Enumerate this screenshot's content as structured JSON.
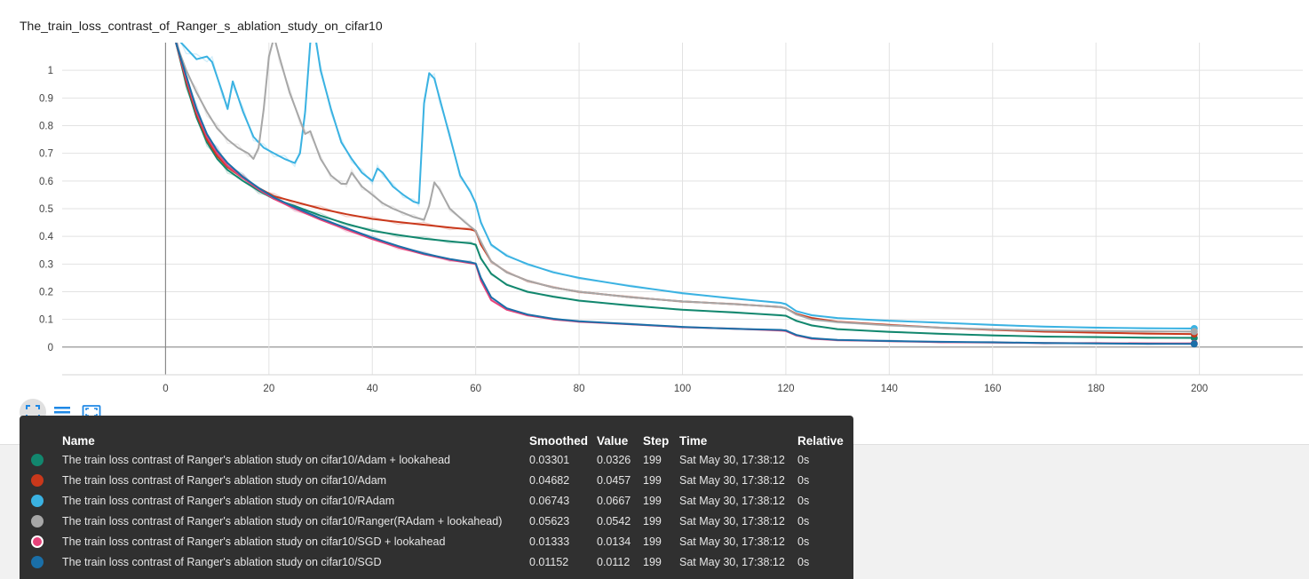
{
  "chart_title": "The_train_loss_contrast_of_Ranger_s_ablation_study_on_cifar10",
  "chart_data": {
    "type": "line",
    "title": "The_train_loss_contrast_of_Ranger_s_ablation_study_on_cifar10",
    "xlim": [
      -20,
      220
    ],
    "ylim": [
      -0.1,
      1.1
    ],
    "x_ticks": [
      "0",
      "20",
      "40",
      "60",
      "80",
      "100",
      "120",
      "140",
      "160",
      "180",
      "200"
    ],
    "y_ticks": [
      "0",
      "0.1",
      "0.2",
      "0.3",
      "0.4",
      "0.5",
      "0.6",
      "0.7",
      "0.8",
      "0.9",
      "1"
    ],
    "grid": true,
    "series": [
      {
        "name": "Adam + lookahead",
        "color": "#12876e",
        "points": [
          [
            2,
            1.1
          ],
          [
            4,
            0.95
          ],
          [
            6,
            0.83
          ],
          [
            8,
            0.74
          ],
          [
            10,
            0.68
          ],
          [
            12,
            0.64
          ],
          [
            15,
            0.6
          ],
          [
            18,
            0.565
          ],
          [
            21,
            0.535
          ],
          [
            25,
            0.51
          ],
          [
            30,
            0.475
          ],
          [
            35,
            0.445
          ],
          [
            40,
            0.42
          ],
          [
            45,
            0.405
          ],
          [
            50,
            0.392
          ],
          [
            55,
            0.382
          ],
          [
            59,
            0.375
          ],
          [
            60,
            0.37
          ],
          [
            61,
            0.32
          ],
          [
            63,
            0.265
          ],
          [
            66,
            0.225
          ],
          [
            70,
            0.2
          ],
          [
            75,
            0.182
          ],
          [
            80,
            0.168
          ],
          [
            90,
            0.15
          ],
          [
            100,
            0.135
          ],
          [
            110,
            0.125
          ],
          [
            119,
            0.115
          ],
          [
            120,
            0.113
          ],
          [
            122,
            0.095
          ],
          [
            125,
            0.078
          ],
          [
            130,
            0.065
          ],
          [
            140,
            0.055
          ],
          [
            150,
            0.048
          ],
          [
            160,
            0.042
          ],
          [
            170,
            0.038
          ],
          [
            180,
            0.036
          ],
          [
            190,
            0.034
          ],
          [
            199,
            0.033
          ]
        ]
      },
      {
        "name": "Adam",
        "color": "#c9381b",
        "points": [
          [
            2,
            1.1
          ],
          [
            4,
            0.96
          ],
          [
            6,
            0.84
          ],
          [
            8,
            0.75
          ],
          [
            10,
            0.69
          ],
          [
            12,
            0.65
          ],
          [
            15,
            0.61
          ],
          [
            18,
            0.575
          ],
          [
            21,
            0.545
          ],
          [
            25,
            0.525
          ],
          [
            30,
            0.5
          ],
          [
            35,
            0.48
          ],
          [
            40,
            0.463
          ],
          [
            45,
            0.452
          ],
          [
            50,
            0.442
          ],
          [
            55,
            0.432
          ],
          [
            59,
            0.425
          ],
          [
            60,
            0.42
          ],
          [
            61,
            0.37
          ],
          [
            63,
            0.31
          ],
          [
            66,
            0.27
          ],
          [
            70,
            0.24
          ],
          [
            75,
            0.215
          ],
          [
            80,
            0.2
          ],
          [
            90,
            0.18
          ],
          [
            100,
            0.165
          ],
          [
            110,
            0.155
          ],
          [
            119,
            0.145
          ],
          [
            120,
            0.14
          ],
          [
            122,
            0.12
          ],
          [
            125,
            0.105
          ],
          [
            130,
            0.092
          ],
          [
            140,
            0.08
          ],
          [
            150,
            0.07
          ],
          [
            160,
            0.062
          ],
          [
            170,
            0.056
          ],
          [
            180,
            0.052
          ],
          [
            190,
            0.049
          ],
          [
            199,
            0.047
          ]
        ]
      },
      {
        "name": "RAdam",
        "color": "#3ab2e2",
        "points": [
          [
            2,
            1.12
          ],
          [
            4,
            1.08
          ],
          [
            6,
            1.04
          ],
          [
            8,
            1.05
          ],
          [
            9,
            1.03
          ],
          [
            11,
            0.92
          ],
          [
            12,
            0.86
          ],
          [
            13,
            0.96
          ],
          [
            15,
            0.85
          ],
          [
            17,
            0.76
          ],
          [
            19,
            0.72
          ],
          [
            21,
            0.7
          ],
          [
            23,
            0.68
          ],
          [
            25,
            0.665
          ],
          [
            26,
            0.7
          ],
          [
            27,
            0.85
          ],
          [
            28,
            1.1
          ],
          [
            29,
            1.12
          ],
          [
            30,
            1.0
          ],
          [
            32,
            0.86
          ],
          [
            34,
            0.74
          ],
          [
            36,
            0.68
          ],
          [
            38,
            0.63
          ],
          [
            40,
            0.6
          ],
          [
            41,
            0.645
          ],
          [
            42,
            0.63
          ],
          [
            44,
            0.58
          ],
          [
            46,
            0.55
          ],
          [
            48,
            0.525
          ],
          [
            49,
            0.52
          ],
          [
            50,
            0.88
          ],
          [
            51,
            0.99
          ],
          [
            52,
            0.97
          ],
          [
            53,
            0.9
          ],
          [
            55,
            0.76
          ],
          [
            57,
            0.62
          ],
          [
            59,
            0.56
          ],
          [
            60,
            0.52
          ],
          [
            61,
            0.45
          ],
          [
            63,
            0.37
          ],
          [
            66,
            0.33
          ],
          [
            70,
            0.3
          ],
          [
            75,
            0.27
          ],
          [
            80,
            0.25
          ],
          [
            90,
            0.22
          ],
          [
            100,
            0.195
          ],
          [
            110,
            0.175
          ],
          [
            119,
            0.16
          ],
          [
            120,
            0.155
          ],
          [
            122,
            0.13
          ],
          [
            125,
            0.115
          ],
          [
            130,
            0.105
          ],
          [
            140,
            0.095
          ],
          [
            150,
            0.088
          ],
          [
            160,
            0.08
          ],
          [
            170,
            0.074
          ],
          [
            180,
            0.07
          ],
          [
            190,
            0.068
          ],
          [
            199,
            0.067
          ]
        ]
      },
      {
        "name": "Ranger(RAdam + lookahead)",
        "color": "#a7a7a7",
        "points": [
          [
            2,
            1.1
          ],
          [
            4,
            1.0
          ],
          [
            6,
            0.92
          ],
          [
            8,
            0.85
          ],
          [
            10,
            0.79
          ],
          [
            12,
            0.75
          ],
          [
            14,
            0.72
          ],
          [
            16,
            0.7
          ],
          [
            17,
            0.68
          ],
          [
            18,
            0.72
          ],
          [
            19,
            0.86
          ],
          [
            20,
            1.05
          ],
          [
            21,
            1.12
          ],
          [
            22,
            1.05
          ],
          [
            24,
            0.92
          ],
          [
            26,
            0.82
          ],
          [
            27,
            0.77
          ],
          [
            28,
            0.78
          ],
          [
            30,
            0.68
          ],
          [
            32,
            0.62
          ],
          [
            34,
            0.59
          ],
          [
            35,
            0.59
          ],
          [
            36,
            0.63
          ],
          [
            38,
            0.58
          ],
          [
            40,
            0.55
          ],
          [
            42,
            0.52
          ],
          [
            44,
            0.5
          ],
          [
            46,
            0.485
          ],
          [
            48,
            0.47
          ],
          [
            50,
            0.46
          ],
          [
            51,
            0.51
          ],
          [
            52,
            0.595
          ],
          [
            53,
            0.57
          ],
          [
            55,
            0.5
          ],
          [
            58,
            0.45
          ],
          [
            60,
            0.42
          ],
          [
            61,
            0.38
          ],
          [
            63,
            0.31
          ],
          [
            66,
            0.27
          ],
          [
            70,
            0.24
          ],
          [
            75,
            0.215
          ],
          [
            80,
            0.2
          ],
          [
            90,
            0.18
          ],
          [
            100,
            0.165
          ],
          [
            110,
            0.155
          ],
          [
            119,
            0.145
          ],
          [
            120,
            0.14
          ],
          [
            122,
            0.118
          ],
          [
            125,
            0.1
          ],
          [
            130,
            0.09
          ],
          [
            140,
            0.078
          ],
          [
            150,
            0.07
          ],
          [
            160,
            0.064
          ],
          [
            170,
            0.06
          ],
          [
            180,
            0.058
          ],
          [
            190,
            0.057
          ],
          [
            199,
            0.056
          ]
        ]
      },
      {
        "name": "SGD + lookahead",
        "color": "#e7427a",
        "points": [
          [
            2,
            1.1
          ],
          [
            4,
            0.97
          ],
          [
            6,
            0.85
          ],
          [
            8,
            0.76
          ],
          [
            10,
            0.7
          ],
          [
            12,
            0.655
          ],
          [
            15,
            0.61
          ],
          [
            18,
            0.57
          ],
          [
            21,
            0.535
          ],
          [
            25,
            0.5
          ],
          [
            30,
            0.46
          ],
          [
            35,
            0.425
          ],
          [
            40,
            0.39
          ],
          [
            45,
            0.36
          ],
          [
            50,
            0.335
          ],
          [
            55,
            0.315
          ],
          [
            59,
            0.303
          ],
          [
            60,
            0.3
          ],
          [
            61,
            0.24
          ],
          [
            63,
            0.17
          ],
          [
            66,
            0.135
          ],
          [
            70,
            0.115
          ],
          [
            75,
            0.1
          ],
          [
            80,
            0.092
          ],
          [
            90,
            0.082
          ],
          [
            100,
            0.072
          ],
          [
            110,
            0.066
          ],
          [
            119,
            0.06
          ],
          [
            120,
            0.058
          ],
          [
            122,
            0.042
          ],
          [
            125,
            0.03
          ],
          [
            130,
            0.025
          ],
          [
            140,
            0.021
          ],
          [
            150,
            0.018
          ],
          [
            160,
            0.016
          ],
          [
            170,
            0.015
          ],
          [
            180,
            0.014
          ],
          [
            190,
            0.0135
          ],
          [
            199,
            0.013
          ]
        ]
      },
      {
        "name": "SGD",
        "color": "#1a6fa8",
        "points": [
          [
            2,
            1.1
          ],
          [
            4,
            0.98
          ],
          [
            6,
            0.86
          ],
          [
            8,
            0.77
          ],
          [
            10,
            0.71
          ],
          [
            12,
            0.665
          ],
          [
            15,
            0.615
          ],
          [
            18,
            0.575
          ],
          [
            21,
            0.54
          ],
          [
            25,
            0.505
          ],
          [
            30,
            0.465
          ],
          [
            35,
            0.43
          ],
          [
            40,
            0.395
          ],
          [
            45,
            0.365
          ],
          [
            50,
            0.338
          ],
          [
            55,
            0.318
          ],
          [
            59,
            0.306
          ],
          [
            60,
            0.302
          ],
          [
            61,
            0.25
          ],
          [
            63,
            0.18
          ],
          [
            66,
            0.14
          ],
          [
            70,
            0.118
          ],
          [
            75,
            0.102
          ],
          [
            80,
            0.093
          ],
          [
            90,
            0.083
          ],
          [
            100,
            0.073
          ],
          [
            110,
            0.066
          ],
          [
            119,
            0.062
          ],
          [
            120,
            0.06
          ],
          [
            122,
            0.044
          ],
          [
            125,
            0.032
          ],
          [
            130,
            0.026
          ],
          [
            140,
            0.022
          ],
          [
            150,
            0.019
          ],
          [
            160,
            0.017
          ],
          [
            170,
            0.015
          ],
          [
            180,
            0.013
          ],
          [
            190,
            0.012
          ],
          [
            199,
            0.0115
          ]
        ]
      }
    ]
  },
  "toolbar": {
    "buttons": [
      {
        "name": "fit-domain-icon"
      },
      {
        "name": "toggle-log-icon"
      },
      {
        "name": "download-icon"
      }
    ]
  },
  "tooltip": {
    "headers": {
      "name": "Name",
      "smoothed": "Smoothed",
      "value": "Value",
      "step": "Step",
      "time": "Time",
      "relative": "Relative"
    },
    "rows": [
      {
        "color": "#12876e",
        "ring": false,
        "name": "The train loss contrast of Ranger's ablation study on cifar10/Adam + lookahead",
        "smoothed": "0.03301",
        "value": "0.0326",
        "step": "199",
        "time": "Sat May 30, 17:38:12",
        "relative": "0s"
      },
      {
        "color": "#c9381b",
        "ring": false,
        "name": "The train loss contrast of Ranger's ablation study on cifar10/Adam",
        "smoothed": "0.04682",
        "value": "0.0457",
        "step": "199",
        "time": "Sat May 30, 17:38:12",
        "relative": "0s"
      },
      {
        "color": "#3ab2e2",
        "ring": false,
        "name": "The train loss contrast of Ranger's ablation study on cifar10/RAdam",
        "smoothed": "0.06743",
        "value": "0.0667",
        "step": "199",
        "time": "Sat May 30, 17:38:12",
        "relative": "0s"
      },
      {
        "color": "#a7a7a7",
        "ring": false,
        "name": "The train loss contrast of Ranger's ablation study on cifar10/Ranger(RAdam + lookahead)",
        "smoothed": "0.05623",
        "value": "0.0542",
        "step": "199",
        "time": "Sat May 30, 17:38:12",
        "relative": "0s"
      },
      {
        "color": "#e7427a",
        "ring": true,
        "name": "The train loss contrast of Ranger's ablation study on cifar10/SGD + lookahead",
        "smoothed": "0.01333",
        "value": "0.0134",
        "step": "199",
        "time": "Sat May 30, 17:38:12",
        "relative": "0s"
      },
      {
        "color": "#1a6fa8",
        "ring": false,
        "name": "The train loss contrast of Ranger's ablation study on cifar10/SGD",
        "smoothed": "0.01152",
        "value": "0.0112",
        "step": "199",
        "time": "Sat May 30, 17:38:12",
        "relative": "0s"
      }
    ]
  }
}
